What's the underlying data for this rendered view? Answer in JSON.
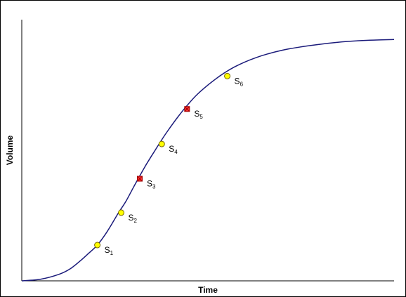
{
  "colors": {
    "curve": "#1a1a7a",
    "axis": "#000000",
    "circle_fill": "#ffff00",
    "circle_stroke": "#7a6a00",
    "square_fill": "#ff3030",
    "square_stroke": "#a00000"
  },
  "chart_data": {
    "type": "line",
    "title": "",
    "xlabel": "Time",
    "ylabel": "Volume",
    "xlim": [
      0,
      100
    ],
    "ylim": [
      0,
      100
    ],
    "grid": false,
    "legend": "none",
    "ticks": "none",
    "curve": [
      {
        "x": 0,
        "y": 0
      },
      {
        "x": 5,
        "y": 0.6
      },
      {
        "x": 10,
        "y": 2.5
      },
      {
        "x": 13,
        "y": 4.6
      },
      {
        "x": 16,
        "y": 8.0
      },
      {
        "x": 18,
        "y": 10.6
      },
      {
        "x": 20.3,
        "y": 13.7
      },
      {
        "x": 23,
        "y": 19.0
      },
      {
        "x": 26,
        "y": 26.1
      },
      {
        "x": 28,
        "y": 30.5
      },
      {
        "x": 30,
        "y": 35.8
      },
      {
        "x": 33,
        "y": 43.5
      },
      {
        "x": 36,
        "y": 50.4
      },
      {
        "x": 39,
        "y": 57.0
      },
      {
        "x": 43,
        "y": 64.7
      },
      {
        "x": 47,
        "y": 71.2
      },
      {
        "x": 52,
        "y": 77.2
      },
      {
        "x": 57,
        "y": 81.8
      },
      {
        "x": 63,
        "y": 85.5
      },
      {
        "x": 70,
        "y": 88.3
      },
      {
        "x": 78,
        "y": 90.2
      },
      {
        "x": 86,
        "y": 91.5
      },
      {
        "x": 93,
        "y": 92.1
      },
      {
        "x": 100,
        "y": 92.4
      }
    ],
    "points": [
      {
        "label": "S",
        "sub": "1",
        "marker": "circle",
        "x": 20.3,
        "y": 13.7
      },
      {
        "label": "S",
        "sub": "2",
        "marker": "circle",
        "x": 26.7,
        "y": 26.1
      },
      {
        "label": "S",
        "sub": "3",
        "marker": "square-x",
        "x": 31.7,
        "y": 39.1
      },
      {
        "label": "S",
        "sub": "4",
        "marker": "circle",
        "x": 37.6,
        "y": 52.4
      },
      {
        "label": "S",
        "sub": "5",
        "marker": "square-x",
        "x": 44.4,
        "y": 65.8
      },
      {
        "label": "S",
        "sub": "6",
        "marker": "circle",
        "x": 55.2,
        "y": 78.4
      }
    ]
  }
}
